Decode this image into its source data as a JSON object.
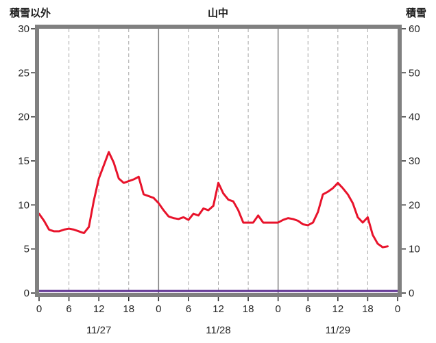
{
  "header": {
    "left_axis_title": "積雪以外",
    "chart_title": "山中",
    "right_axis_title": "積雪"
  },
  "chart_data": {
    "type": "line",
    "title": "山中",
    "grid": "vertical-only",
    "legend": "none",
    "left_axis": {
      "label": "積雪以外",
      "min": 0,
      "max": 30,
      "ticks": [
        0,
        5,
        10,
        15,
        20,
        25,
        30
      ]
    },
    "right_axis": {
      "label": "積雪",
      "min": 0,
      "max": 60,
      "ticks": [
        0,
        10,
        20,
        30,
        40,
        50,
        60
      ]
    },
    "x_axis": {
      "hours_span": 72,
      "tick_step": 6,
      "tick_labels": [
        "0",
        "6",
        "12",
        "18",
        "0",
        "6",
        "12",
        "18",
        "0",
        "6",
        "12",
        "18",
        "0"
      ],
      "date_labels": [
        {
          "label": "11/27",
          "hour": 12
        },
        {
          "label": "11/28",
          "hour": 36
        },
        {
          "label": "11/29",
          "hour": 60
        }
      ]
    },
    "series": [
      {
        "name": "積雪以外",
        "axis": "left",
        "color": "#e8132b",
        "x_start_hour": 0,
        "x_step_hours": 1,
        "values": [
          9.0,
          8.2,
          7.2,
          7.0,
          7.0,
          7.2,
          7.3,
          7.2,
          7.0,
          6.8,
          7.5,
          10.5,
          13.0,
          14.5,
          16.0,
          14.8,
          13.0,
          12.5,
          12.7,
          12.9,
          13.2,
          11.2,
          11.0,
          10.8,
          10.2,
          9.4,
          8.7,
          8.5,
          8.4,
          8.6,
          8.3,
          9.0,
          8.8,
          9.6,
          9.4,
          9.9,
          12.5,
          11.3,
          10.6,
          10.4,
          9.4,
          8.0,
          8.0,
          8.0,
          8.8,
          8.0,
          8.0,
          8.0,
          8.0,
          8.3,
          8.5,
          8.4,
          8.2,
          7.8,
          7.7,
          8.0,
          9.2,
          11.2,
          11.5,
          11.9,
          12.5,
          11.9,
          11.2,
          10.2,
          8.6,
          8.0,
          8.6,
          6.6,
          5.6,
          5.2,
          5.3
        ]
      },
      {
        "name": "積雪",
        "axis": "right",
        "color": "#5b2d90",
        "x_hours": [
          0,
          72
        ],
        "values": [
          0,
          0
        ]
      }
    ],
    "colors": {
      "plot_border": "#808080",
      "hour_gridline": "#a6a6a6",
      "day_gridline": "#7f7f7f",
      "axis_text": "#262626"
    }
  }
}
